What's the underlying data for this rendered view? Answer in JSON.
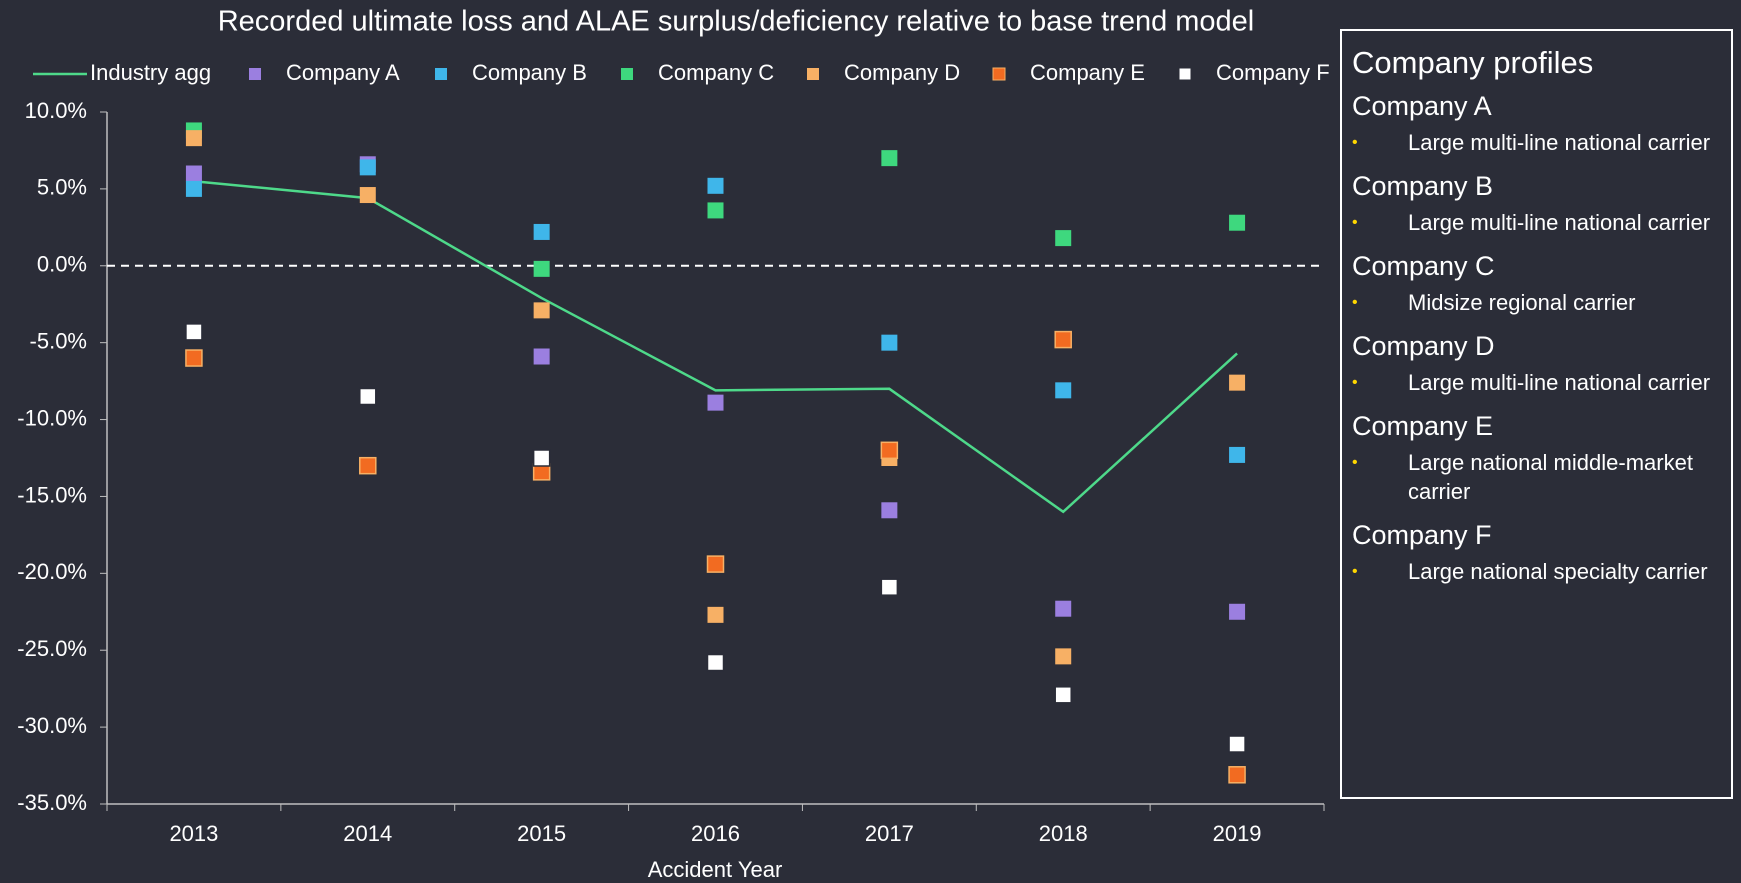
{
  "chart_data": {
    "type": "scatter",
    "title": "Recorded ultimate loss and ALAE surplus/deficiency relative to base trend model",
    "x_label": "Accident Year",
    "categories": [
      "2013",
      "2014",
      "2015",
      "2016",
      "2017",
      "2018",
      "2019"
    ],
    "series": [
      {
        "name": "Industry agg",
        "style": "line",
        "color": "#4ed98a",
        "values": [
          5.5,
          4.4,
          -2.1,
          -8.1,
          -8.0,
          -16.0,
          -5.7
        ]
      },
      {
        "name": "Company A",
        "style": "marker",
        "color": "#9b7fe0",
        "values": [
          6.0,
          6.6,
          -5.9,
          -8.9,
          -15.9,
          -22.3,
          -22.5
        ]
      },
      {
        "name": "Company B",
        "style": "marker",
        "color": "#3fb6ea",
        "values": [
          5.0,
          6.4,
          2.2,
          5.2,
          -5.0,
          -8.1,
          -12.3
        ]
      },
      {
        "name": "Company C",
        "style": "marker",
        "color": "#3ed87e",
        "values": [
          8.8,
          null,
          -0.2,
          3.6,
          7.0,
          1.8,
          2.8
        ]
      },
      {
        "name": "Company D",
        "style": "marker",
        "color": "#f7b065",
        "values": [
          8.3,
          4.6,
          -2.9,
          -22.7,
          -12.5,
          -25.4,
          -7.6
        ]
      },
      {
        "name": "Company E",
        "style": "marker",
        "color": "#f26b21",
        "stroke": "#f7b065",
        "values": [
          -6.0,
          -13.0,
          -13.4,
          -19.4,
          -12.0,
          -4.8,
          -33.1
        ]
      },
      {
        "name": "Company F",
        "style": "marker",
        "color": "#ffffff",
        "stroke": "#2b2d38",
        "values": [
          -4.3,
          -8.5,
          -12.5,
          -25.8,
          -20.9,
          -27.9,
          -31.1
        ]
      }
    ],
    "ylim": [
      -35,
      10
    ],
    "yticks": [
      {
        "value": 10,
        "label": "10.0%"
      },
      {
        "value": 5,
        "label": "5.0%"
      },
      {
        "value": 0,
        "label": "0.0%"
      },
      {
        "value": -5,
        "label": "-5.0%"
      },
      {
        "value": -10,
        "label": "-10.0%"
      },
      {
        "value": -15,
        "label": "-15.0%"
      },
      {
        "value": -20,
        "label": "-20.0%"
      },
      {
        "value": -25,
        "label": "-25.0%"
      },
      {
        "value": -30,
        "label": "-30.0%"
      },
      {
        "value": -35,
        "label": "-35.0%"
      }
    ],
    "reference_line": 0,
    "legend": "top"
  },
  "profiles": {
    "title": "Company profiles",
    "items": [
      {
        "name": "Company A",
        "description": "Large multi-line national carrier"
      },
      {
        "name": "Company B",
        "description": "Large multi-line national carrier"
      },
      {
        "name": "Company C",
        "description": "Midsize regional carrier"
      },
      {
        "name": "Company D",
        "description": "Large multi-line national carrier"
      },
      {
        "name": "Company E",
        "description": "Large national middle-market carrier"
      },
      {
        "name": "Company F",
        "description": "Large national specialty carrier"
      }
    ]
  }
}
